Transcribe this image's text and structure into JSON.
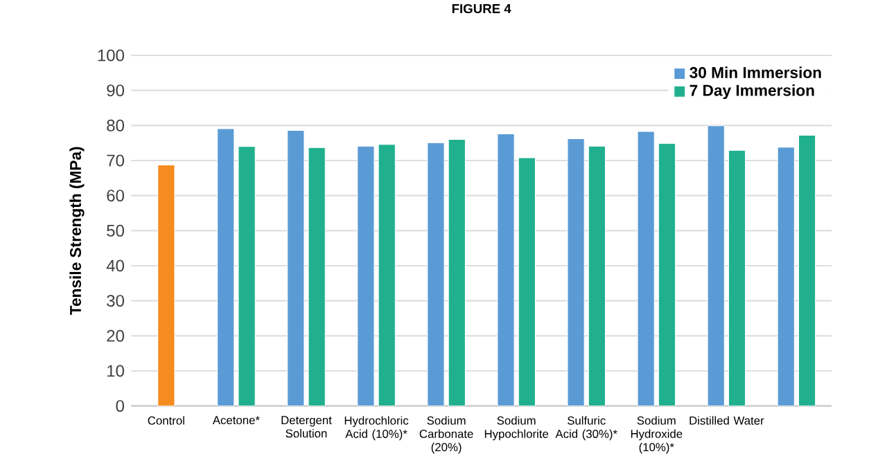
{
  "chart_data": {
    "type": "bar",
    "title": "FIGURE 4",
    "ylabel": "Tensile Strength (MPa)",
    "categories": [
      "Control",
      "Acetone*",
      "Detergent Solution",
      "Hydrochloric Acid (10%)*",
      "Sodium Carbonate (20%)",
      "Sodium Hypochlorite",
      "Sulfuric Acid (30%)*",
      "Sodium Hydroxide (10%)*",
      "Distilled Water",
      null
    ],
    "series": [
      {
        "color": "#f58c1f",
        "values": [
          68.7,
          null,
          null,
          null,
          null,
          null,
          null,
          null,
          null,
          null
        ]
      },
      {
        "name": "30 Min Immersion",
        "color": "#5b9bd5",
        "values": [
          null,
          79.1,
          78.6,
          74.1,
          75.1,
          77.6,
          76.2,
          78.3,
          79.9,
          73.8
        ]
      },
      {
        "name": "7 Day Immersion",
        "color": "#21b08e",
        "values": [
          null,
          74.0,
          73.7,
          74.6,
          76.0,
          70.8,
          74.1,
          74.9,
          72.9,
          77.2
        ]
      }
    ],
    "ylim": [
      0,
      100
    ],
    "yticks": [
      0,
      10,
      20,
      30,
      40,
      50,
      60,
      70,
      80,
      90,
      100
    ],
    "grid": "y",
    "legend": "top right"
  }
}
